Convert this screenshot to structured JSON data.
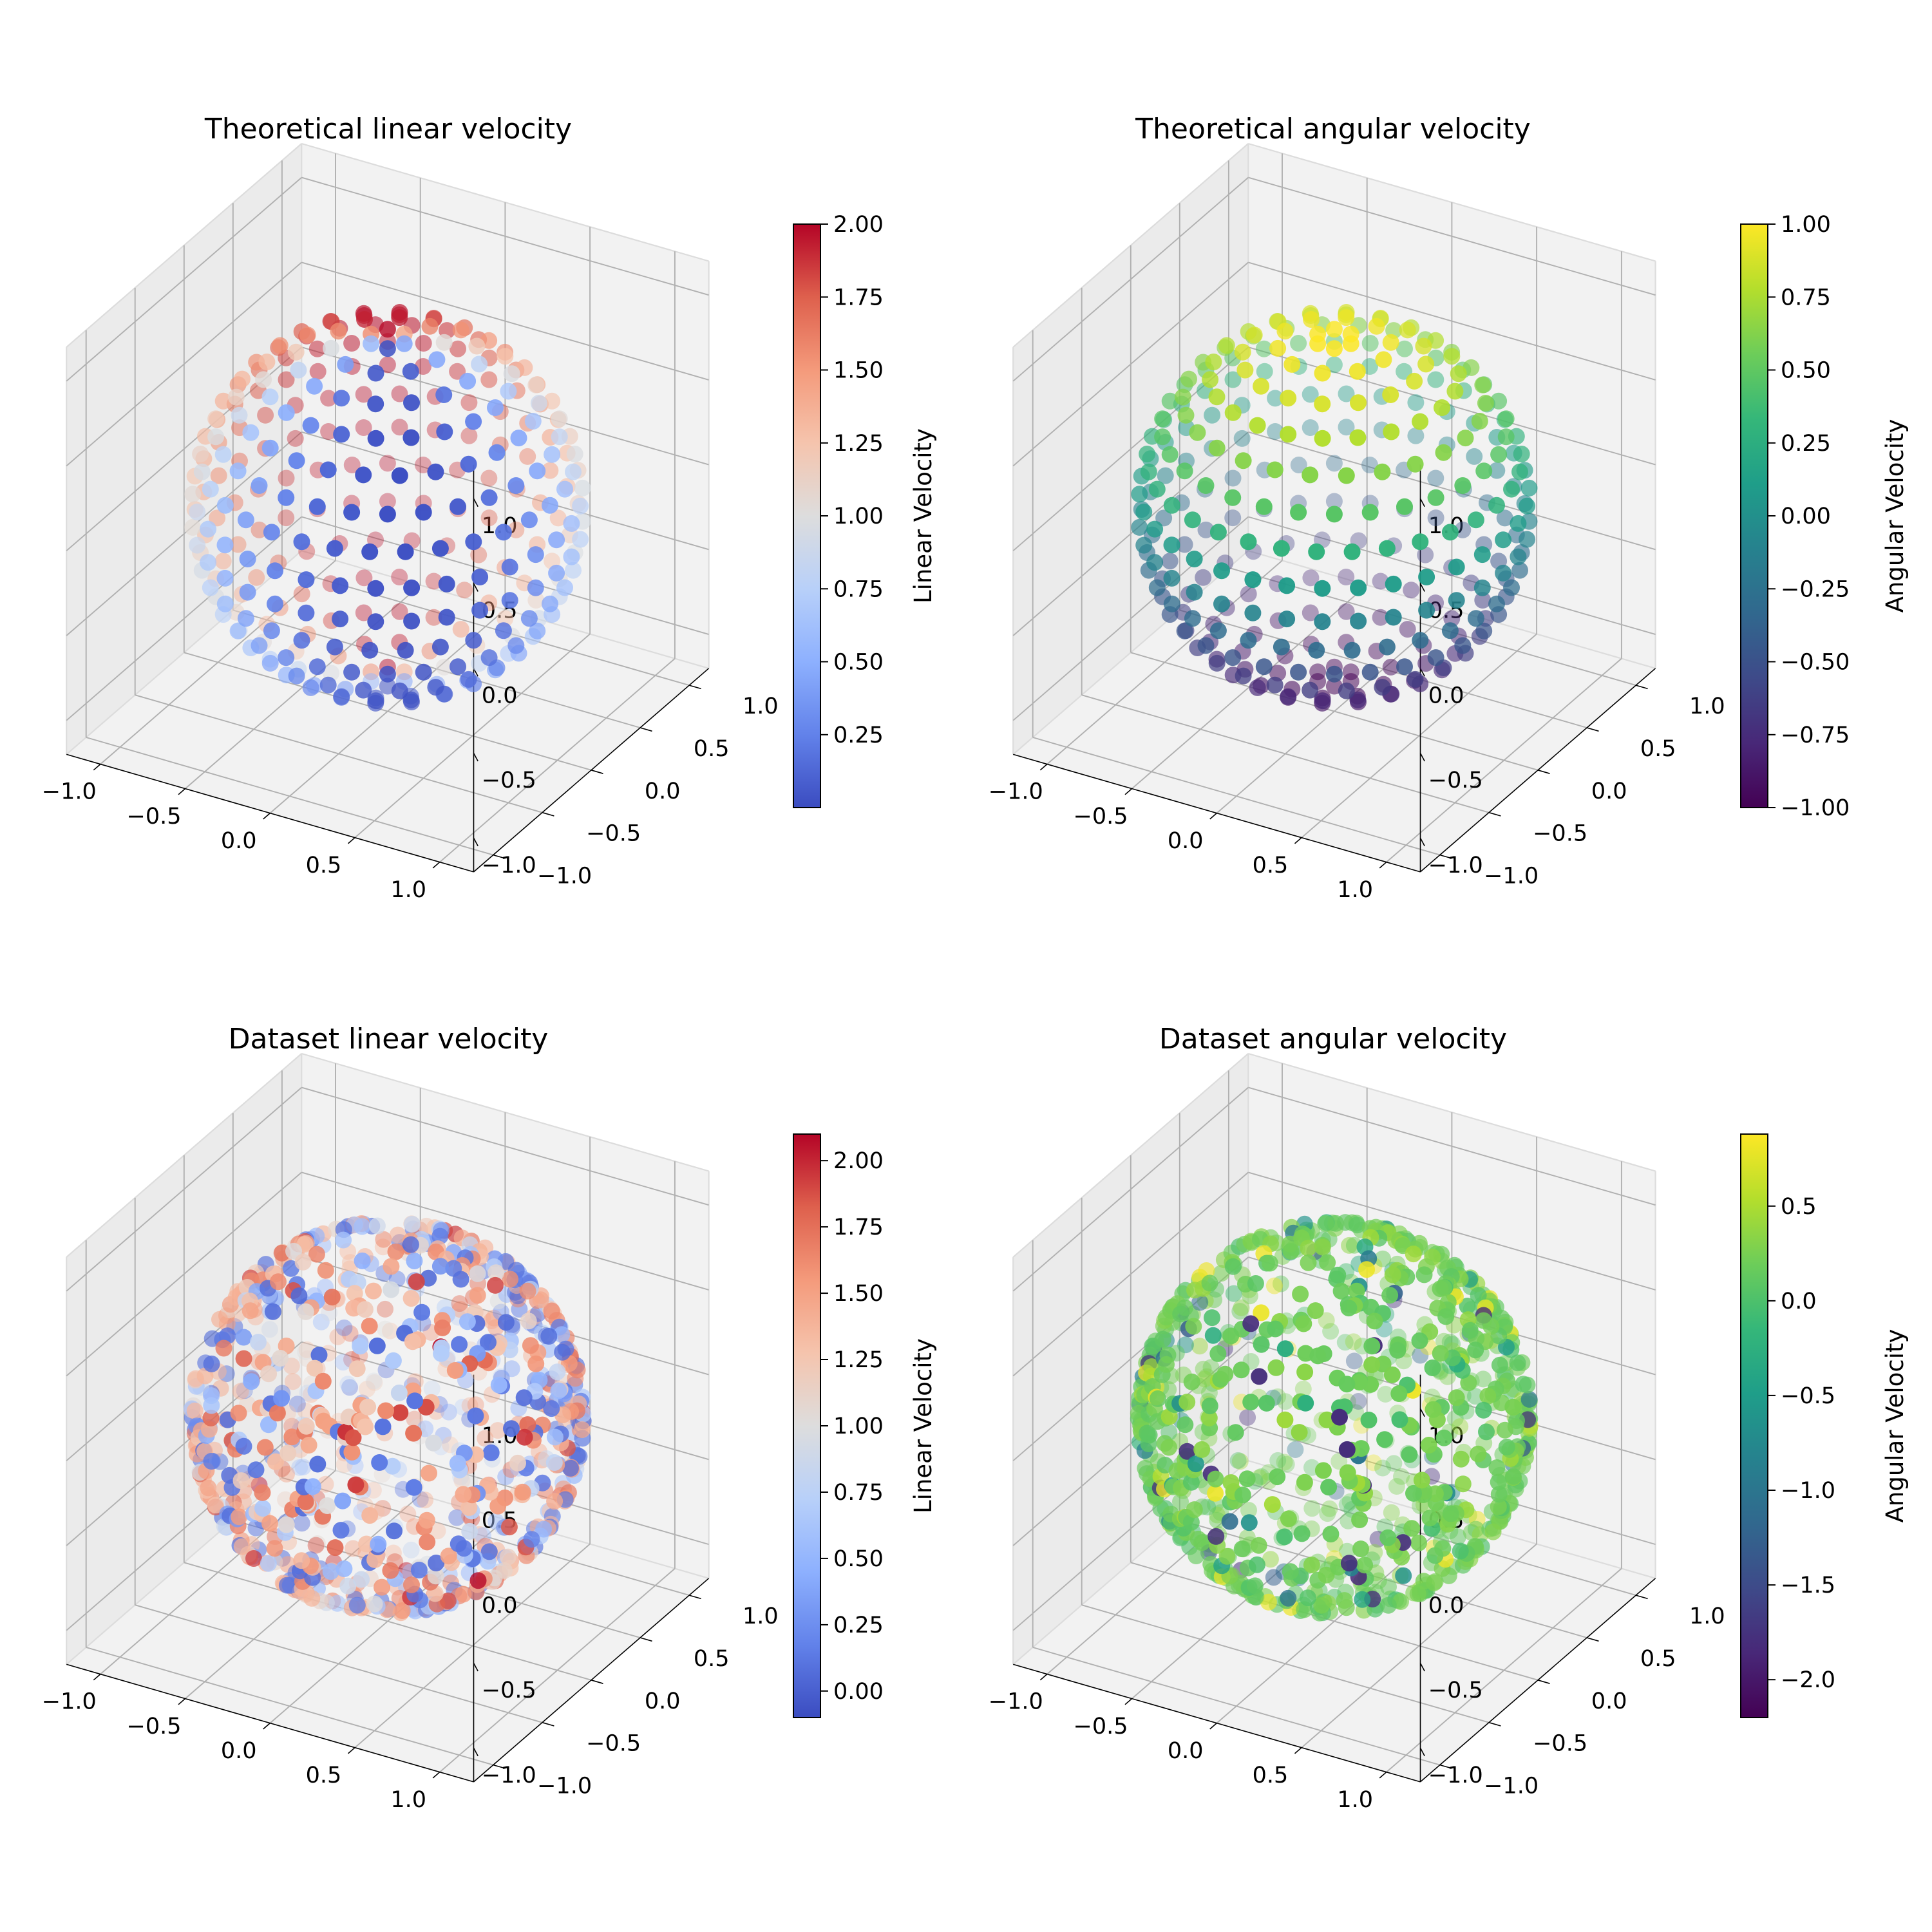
{
  "chart_data": [
    {
      "type": "scatter",
      "title": "Theoretical linear velocity",
      "colorbar": {
        "label": "Linear Velocity",
        "colormap": "coolwarm",
        "range": [
          0.0,
          2.0
        ],
        "ticks": [
          "0.25",
          "0.50",
          "0.75",
          "1.00",
          "1.25",
          "1.50",
          "1.75",
          "2.00"
        ],
        "tick_values": [
          0.25,
          0.5,
          0.75,
          1.0,
          1.25,
          1.5,
          1.75,
          2.0
        ]
      },
      "axes": {
        "xlim": [
          -1.2,
          1.2
        ],
        "ylim": [
          -1.2,
          1.2
        ],
        "zlim": [
          -1.2,
          1.2
        ],
        "x_ticks": [
          "−1.0",
          "−0.5",
          "0.0",
          "0.5",
          "1.0"
        ],
        "y_ticks": [
          "−1.0",
          "−0.5",
          "0.0",
          "0.5",
          "1.0"
        ],
        "z_ticks": [
          "−1.0",
          "−0.5",
          "0.0",
          "0.5",
          "1.0"
        ],
        "grid": true
      },
      "points": "unit sphere sampled on latitude rings; color ranges 0 to 2 around the sphere"
    },
    {
      "type": "scatter",
      "title": "Theoretical angular velocity",
      "colorbar": {
        "label": "Angular Velocity",
        "colormap": "viridis",
        "range": [
          -1.0,
          1.0
        ],
        "ticks": [
          "−1.00",
          "−0.75",
          "−0.50",
          "−0.25",
          "0.00",
          "0.25",
          "0.50",
          "0.75",
          "1.00"
        ],
        "tick_values": [
          -1.0,
          -0.75,
          -0.5,
          -0.25,
          0.0,
          0.25,
          0.5,
          0.75,
          1.0
        ]
      },
      "axes": {
        "xlim": [
          -1.2,
          1.2
        ],
        "ylim": [
          -1.2,
          1.2
        ],
        "zlim": [
          -1.2,
          1.2
        ],
        "x_ticks": [
          "−1.0",
          "−0.5",
          "0.0",
          "0.5",
          "1.0"
        ],
        "y_ticks": [
          "−1.0",
          "−0.5",
          "0.0",
          "0.5",
          "1.0"
        ],
        "z_ticks": [
          "−1.0",
          "−0.5",
          "0.0",
          "0.5",
          "1.0"
        ],
        "grid": true
      },
      "points": "unit sphere sampled on latitude rings; color equals z (from -1 at bottom pole to 1 at top pole)"
    },
    {
      "type": "scatter",
      "title": "Dataset linear velocity",
      "colorbar": {
        "label": "Linear Velocity",
        "colormap": "coolwarm",
        "range": [
          -0.1,
          2.1
        ],
        "ticks": [
          "0.00",
          "0.25",
          "0.50",
          "0.75",
          "1.00",
          "1.25",
          "1.50",
          "1.75",
          "2.00"
        ],
        "tick_values": [
          0.0,
          0.25,
          0.5,
          0.75,
          1.0,
          1.25,
          1.5,
          1.75,
          2.0
        ]
      },
      "axes": {
        "xlim": [
          -1.2,
          1.2
        ],
        "ylim": [
          -1.2,
          1.2
        ],
        "zlim": [
          -1.2,
          1.2
        ],
        "x_ticks": [
          "−1.0",
          "−0.5",
          "0.0",
          "0.5",
          "1.0"
        ],
        "y_ticks": [
          "−1.0",
          "−0.5",
          "0.0",
          "0.5",
          "1.0"
        ],
        "z_ticks": [
          "−1.0",
          "−0.5",
          "0.0",
          "0.5",
          "1.0"
        ],
        "grid": true
      },
      "points": "random points on unit sphere; colors scattered mostly between 0 and 1.75"
    },
    {
      "type": "scatter",
      "title": "Dataset angular velocity",
      "colorbar": {
        "label": "Angular Velocity",
        "colormap": "viridis",
        "range": [
          -2.2,
          0.88
        ],
        "ticks": [
          "−2.0",
          "−1.5",
          "−1.0",
          "−0.5",
          "0.0",
          "0.5"
        ],
        "tick_values": [
          -2.0,
          -1.5,
          -1.0,
          -0.5,
          0.0,
          0.5
        ]
      },
      "axes": {
        "xlim": [
          -1.2,
          1.2
        ],
        "ylim": [
          -1.2,
          1.2
        ],
        "zlim": [
          -1.2,
          1.2
        ],
        "x_ticks": [
          "−1.0",
          "−0.5",
          "0.0",
          "0.5",
          "1.0"
        ],
        "y_ticks": [
          "−1.0",
          "−0.5",
          "0.0",
          "0.5",
          "1.0"
        ],
        "z_ticks": [
          "−1.0",
          "−0.5",
          "0.0",
          "0.5",
          "1.0"
        ],
        "grid": true
      },
      "points": "random points on unit sphere; colors mostly near 0.0 to 0.3 with a few outliers"
    }
  ]
}
